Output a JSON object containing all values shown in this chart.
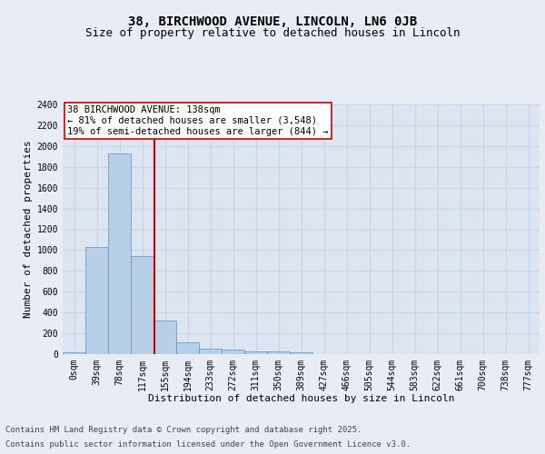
{
  "title_line1": "38, BIRCHWOOD AVENUE, LINCOLN, LN6 0JB",
  "title_line2": "Size of property relative to detached houses in Lincoln",
  "xlabel": "Distribution of detached houses by size in Lincoln",
  "ylabel": "Number of detached properties",
  "bin_labels": [
    "0sqm",
    "39sqm",
    "78sqm",
    "117sqm",
    "155sqm",
    "194sqm",
    "233sqm",
    "272sqm",
    "311sqm",
    "350sqm",
    "389sqm",
    "427sqm",
    "466sqm",
    "505sqm",
    "544sqm",
    "583sqm",
    "622sqm",
    "661sqm",
    "700sqm",
    "738sqm",
    "777sqm"
  ],
  "bar_values": [
    20,
    1030,
    1930,
    940,
    320,
    110,
    50,
    40,
    30,
    25,
    20,
    0,
    0,
    0,
    0,
    0,
    0,
    0,
    0,
    0,
    0
  ],
  "bar_color": "#b8cfe8",
  "bar_edgecolor": "#6090c0",
  "background_color": "#e8edf5",
  "plot_bg_color": "#dce5f0",
  "grid_color": "#c8d5e8",
  "vline_color": "#cc0000",
  "annotation_text": "38 BIRCHWOOD AVENUE: 138sqm\n← 81% of detached houses are smaller (3,548)\n19% of semi-detached houses are larger (844) →",
  "annotation_box_edgecolor": "#cc0000",
  "annotation_box_facecolor": "#ffffff",
  "ylim": [
    0,
    2400
  ],
  "yticks": [
    0,
    200,
    400,
    600,
    800,
    1000,
    1200,
    1400,
    1600,
    1800,
    2000,
    2200,
    2400
  ],
  "footer_line1": "Contains HM Land Registry data © Crown copyright and database right 2025.",
  "footer_line2": "Contains public sector information licensed under the Open Government Licence v3.0.",
  "title_fontsize": 10,
  "subtitle_fontsize": 9,
  "axis_label_fontsize": 8,
  "tick_fontsize": 7,
  "annotation_fontsize": 7.5,
  "footer_fontsize": 6.5,
  "ylabel_fontsize": 8
}
